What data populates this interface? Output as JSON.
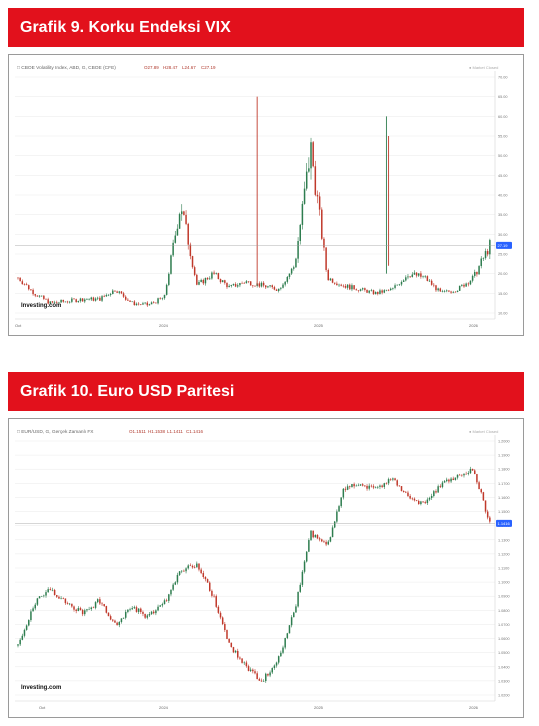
{
  "charts": [
    {
      "banner": "Grafik 9. Korku Endeksi VIX",
      "legend_title": "CBOE Volatility Index, ABD, G, CBOE (CFE)",
      "ohlc": [
        "27.89",
        "28.47",
        "24.67",
        "27.19"
      ],
      "market_status": "Market Closed",
      "last_price": "27.19",
      "brand": "Investing.com",
      "x_ticks": [
        "Oct",
        "2024",
        "2025",
        "2026"
      ],
      "y_ticks": [
        "10.00",
        "15.00",
        "20.00",
        "25.00",
        "30.00",
        "35.00",
        "40.00",
        "45.00",
        "50.00",
        "55.00",
        "60.00",
        "65.00",
        "70.00"
      ]
    },
    {
      "banner": "Grafik 10. Euro USD Paritesi",
      "legend_title": "EUR/USD, G, Gerçek Zamanlı FX",
      "ohlc": [
        "1.1511",
        "1.1538",
        "1.1411",
        "1.1416"
      ],
      "market_status": "Market Closed",
      "last_price": "1.1416",
      "brand": "Investing.com",
      "x_ticks": [
        "Oct",
        "2024",
        "2025",
        "2026"
      ],
      "y_ticks": [
        "1.0200",
        "1.0300",
        "1.0400",
        "1.0500",
        "1.0600",
        "1.0700",
        "1.0800",
        "1.0900",
        "1.1000",
        "1.1100",
        "1.1200",
        "1.1300",
        "1.1400",
        "1.1500",
        "1.1600",
        "1.1700",
        "1.1800",
        "1.1900",
        "1.2000"
      ]
    }
  ],
  "chart_data": [
    {
      "type": "line",
      "title": "Grafik 9. Korku Endeksi VIX",
      "series": [
        {
          "name": "CBOE Volatility Index",
          "x": [
            "2023-10",
            "2023-11",
            "2023-12",
            "2024-01",
            "2024-02",
            "2024-03",
            "2024-04",
            "2024-05",
            "2024-06",
            "2024-07",
            "2024-08",
            "2024-09",
            "2024-10",
            "2024-11",
            "2024-12",
            "2025-01",
            "2025-02",
            "2025-03",
            "2025-04",
            "2025-05",
            "2025-06",
            "2025-07",
            "2025-08",
            "2025-09",
            "2025-10",
            "2025-11",
            "2025-12",
            "2026-01",
            "2026-02",
            "2026-03"
          ],
          "values": [
            19,
            15,
            12.5,
            13,
            13.5,
            13.5,
            16,
            12.5,
            12,
            14,
            38,
            17,
            20,
            16.5,
            18,
            17,
            16,
            22,
            52,
            19,
            17,
            16,
            15,
            16,
            20,
            19,
            15,
            16,
            19,
            27.19
          ]
        }
      ],
      "ylim": [
        10,
        70
      ]
    },
    {
      "type": "line",
      "title": "Grafik 10. Euro USD Paritesi",
      "series": [
        {
          "name": "EUR/USD",
          "x": [
            "2023-10",
            "2023-11",
            "2023-12",
            "2024-01",
            "2024-02",
            "2024-03",
            "2024-04",
            "2024-05",
            "2024-06",
            "2024-07",
            "2024-08",
            "2024-09",
            "2024-10",
            "2024-11",
            "2024-12",
            "2025-01",
            "2025-02",
            "2025-03",
            "2025-04",
            "2025-05",
            "2025-06",
            "2025-07",
            "2025-08",
            "2025-09",
            "2025-10",
            "2025-11",
            "2025-12",
            "2026-01",
            "2026-02",
            "2026-03"
          ],
          "values": [
            1.055,
            1.085,
            1.095,
            1.085,
            1.078,
            1.087,
            1.07,
            1.083,
            1.075,
            1.085,
            1.108,
            1.112,
            1.09,
            1.055,
            1.04,
            1.03,
            1.045,
            1.08,
            1.135,
            1.125,
            1.165,
            1.17,
            1.165,
            1.175,
            1.16,
            1.155,
            1.17,
            1.175,
            1.18,
            1.1416
          ]
        }
      ],
      "ylim": [
        1.02,
        1.2
      ]
    }
  ],
  "colors": {
    "banner": "#e2111c",
    "up": "#2e7d4f",
    "down": "#c0392b",
    "pricetag": "#2962ff",
    "grid": "#eaeaea"
  }
}
